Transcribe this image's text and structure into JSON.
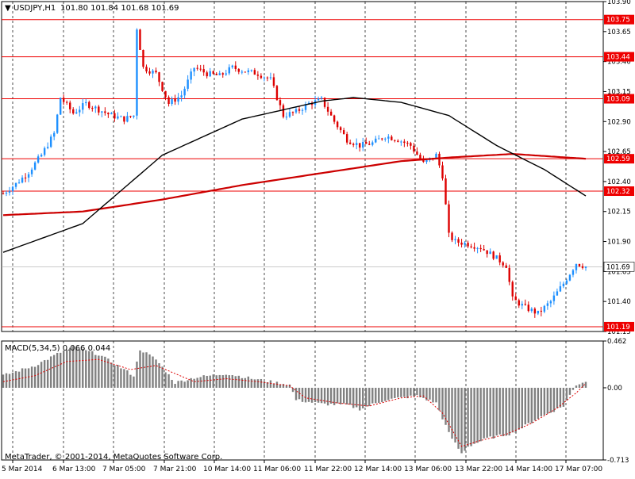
{
  "header": {
    "symbol": "USDJPY,H1",
    "ohlc": "101.80 101.84 101.68 101.69",
    "menu_glyph": "▼"
  },
  "macd_header": "MACD(5,34,5) 0.066 0.044",
  "copyright": "MetaTrader, © 2001-2014, MetaQuotes Software Corp.",
  "colors": {
    "background": "#ffffff",
    "bull": "#1e90ff",
    "bear": "#dd0000",
    "level_line": "#ee0000",
    "ma_fast": "#000000",
    "ma_slow": "#cc0000",
    "macd_hist": "#808080",
    "macd_signal": "#dd0000"
  },
  "chart_data": [
    {
      "type": "candlestick",
      "title": "USDJPY,H1",
      "ylim": [
        101.15,
        103.9
      ],
      "y_ticks": [
        "103.90",
        "103.65",
        "103.40",
        "103.15",
        "102.90",
        "102.65",
        "102.40",
        "102.15",
        "101.90",
        "101.65",
        "101.40",
        "101.15"
      ],
      "x_tick_labels": [
        "5 Mar 2014",
        "6 Mar 13:00",
        "7 Mar 05:00",
        "7 Mar 21:00",
        "10 Mar 14:00",
        "11 Mar 06:00",
        "11 Mar 22:00",
        "12 Mar 14:00",
        "13 Mar 06:00",
        "13 Mar 22:00",
        "14 Mar 14:00",
        "17 Mar 07:00"
      ],
      "price_levels": [
        103.75,
        103.44,
        103.09,
        102.59,
        102.32,
        101.19
      ],
      "current_price": 101.69,
      "close_path": [
        [
          0,
          102.3
        ],
        [
          4,
          102.38
        ],
        [
          8,
          102.48
        ],
        [
          12,
          102.62
        ],
        [
          16,
          102.8
        ],
        [
          18,
          103.1
        ],
        [
          22,
          102.97
        ],
        [
          26,
          103.05
        ],
        [
          30,
          103.0
        ],
        [
          34,
          102.95
        ],
        [
          38,
          102.92
        ],
        [
          41,
          102.95
        ],
        [
          42,
          103.68
        ],
        [
          44,
          103.35
        ],
        [
          48,
          103.3
        ],
        [
          52,
          103.05
        ],
        [
          56,
          103.12
        ],
        [
          60,
          103.35
        ],
        [
          64,
          103.3
        ],
        [
          68,
          103.28
        ],
        [
          72,
          103.35
        ],
        [
          76,
          103.32
        ],
        [
          80,
          103.3
        ],
        [
          84,
          103.25
        ],
        [
          88,
          102.95
        ],
        [
          92,
          102.98
        ],
        [
          96,
          103.05
        ],
        [
          100,
          103.08
        ],
        [
          104,
          102.9
        ],
        [
          108,
          102.75
        ],
        [
          112,
          102.7
        ],
        [
          116,
          102.72
        ],
        [
          120,
          102.78
        ],
        [
          124,
          102.75
        ],
        [
          128,
          102.7
        ],
        [
          132,
          102.55
        ],
        [
          136,
          102.62
        ],
        [
          138,
          102.45
        ],
        [
          140,
          101.95
        ],
        [
          142,
          101.9
        ],
        [
          146,
          101.88
        ],
        [
          150,
          101.85
        ],
        [
          154,
          101.78
        ],
        [
          158,
          101.7
        ],
        [
          160,
          101.42
        ],
        [
          164,
          101.35
        ],
        [
          168,
          101.3
        ],
        [
          172,
          101.4
        ],
        [
          176,
          101.55
        ],
        [
          180,
          101.72
        ],
        [
          183,
          101.69
        ]
      ],
      "ma_fast": {
        "name": "",
        "values": [
          [
            0,
            101.81
          ],
          [
            25,
            102.05
          ],
          [
            50,
            102.62
          ],
          [
            75,
            102.92
          ],
          [
            100,
            103.07
          ],
          [
            110,
            103.1
          ],
          [
            125,
            103.06
          ],
          [
            140,
            102.95
          ],
          [
            155,
            102.7
          ],
          [
            170,
            102.5
          ],
          [
            183,
            102.28
          ]
        ]
      },
      "ma_slow": {
        "name": "",
        "values": [
          [
            0,
            102.12
          ],
          [
            25,
            102.15
          ],
          [
            50,
            102.25
          ],
          [
            75,
            102.37
          ],
          [
            100,
            102.47
          ],
          [
            125,
            102.57
          ],
          [
            140,
            102.6
          ],
          [
            160,
            102.63
          ],
          [
            183,
            102.59
          ]
        ]
      }
    },
    {
      "type": "bar",
      "title": "MACD(5,34,5)",
      "ylim": [
        -0.713,
        0.462
      ],
      "y_ticks": [
        "0.462",
        "0.00",
        "-0.713"
      ],
      "histogram_path": [
        [
          0,
          0.12
        ],
        [
          10,
          0.22
        ],
        [
          18,
          0.35
        ],
        [
          22,
          0.4
        ],
        [
          30,
          0.33
        ],
        [
          38,
          0.18
        ],
        [
          41,
          0.12
        ],
        [
          43,
          0.38
        ],
        [
          48,
          0.28
        ],
        [
          54,
          0.05
        ],
        [
          60,
          0.1
        ],
        [
          70,
          0.14
        ],
        [
          80,
          0.08
        ],
        [
          90,
          0.03
        ],
        [
          92,
          -0.12
        ],
        [
          100,
          -0.16
        ],
        [
          108,
          -0.17
        ],
        [
          112,
          -0.21
        ],
        [
          120,
          -0.12
        ],
        [
          130,
          -0.08
        ],
        [
          136,
          -0.15
        ],
        [
          140,
          -0.45
        ],
        [
          142,
          -0.55
        ],
        [
          144,
          -0.65
        ],
        [
          146,
          -0.58
        ],
        [
          152,
          -0.5
        ],
        [
          160,
          -0.45
        ],
        [
          168,
          -0.3
        ],
        [
          176,
          -0.18
        ],
        [
          180,
          0.03
        ],
        [
          183,
          0.066
        ]
      ],
      "signal_path": [
        [
          0,
          0.06
        ],
        [
          10,
          0.12
        ],
        [
          20,
          0.26
        ],
        [
          30,
          0.28
        ],
        [
          40,
          0.18
        ],
        [
          48,
          0.22
        ],
        [
          60,
          0.06
        ],
        [
          70,
          0.09
        ],
        [
          80,
          0.06
        ],
        [
          90,
          0.02
        ],
        [
          95,
          -0.1
        ],
        [
          105,
          -0.15
        ],
        [
          115,
          -0.18
        ],
        [
          125,
          -0.1
        ],
        [
          132,
          -0.08
        ],
        [
          138,
          -0.25
        ],
        [
          144,
          -0.58
        ],
        [
          150,
          -0.52
        ],
        [
          158,
          -0.46
        ],
        [
          166,
          -0.35
        ],
        [
          174,
          -0.2
        ],
        [
          180,
          -0.05
        ],
        [
          183,
          0.044
        ]
      ]
    }
  ]
}
